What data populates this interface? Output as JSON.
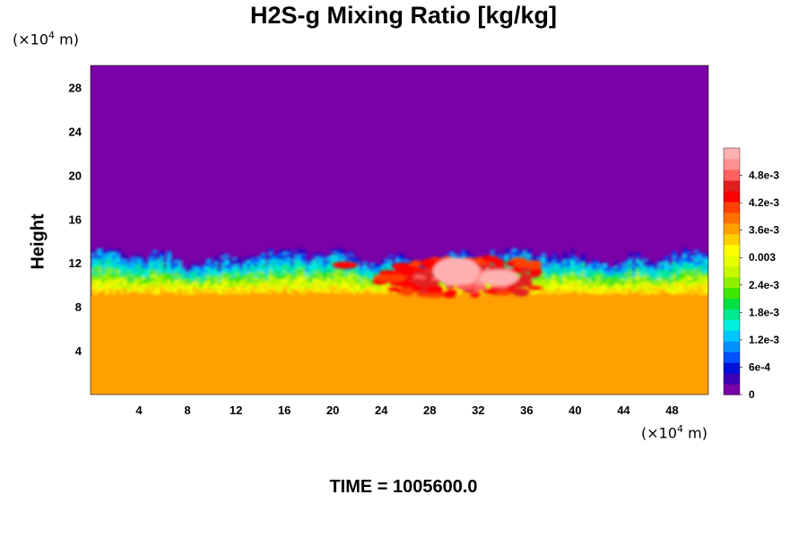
{
  "chart_data": {
    "type": "heatmap",
    "title": "H2S-g Mixing Ratio [kg/kg]",
    "ylabel": "Height",
    "xlabel": "",
    "x_unit_base": "(×10",
    "x_unit_exp": "4",
    "x_unit_tail": " m)",
    "y_unit_base": "(×10",
    "y_unit_exp": "4",
    "y_unit_tail": " m)",
    "xlim": [
      0,
      51
    ],
    "ylim": [
      0,
      30
    ],
    "x_ticks": [
      "4",
      "8",
      "12",
      "16",
      "20",
      "24",
      "28",
      "32",
      "36",
      "40",
      "44",
      "48"
    ],
    "x_tick_values": [
      4,
      8,
      12,
      16,
      20,
      24,
      28,
      32,
      36,
      40,
      44,
      48
    ],
    "y_ticks": [
      "4",
      "8",
      "12",
      "16",
      "20",
      "24",
      "28"
    ],
    "y_tick_values": [
      4,
      8,
      12,
      16,
      20,
      24,
      28
    ],
    "colorbar": {
      "labels": [
        "0",
        "6e-4",
        "1.2e-3",
        "1.8e-3",
        "2.4e-3",
        "0.003",
        "3.6e-3",
        "4.2e-3",
        "4.8e-3"
      ],
      "label_values": [
        0,
        0.0006,
        0.0012,
        0.0018,
        0.0024,
        0.003,
        0.0036,
        0.0042,
        0.0048
      ],
      "vmin": 0,
      "vmax": 0.0054,
      "colors": [
        "#7a00a8",
        "#3d00b8",
        "#0010d8",
        "#0050ff",
        "#0090ff",
        "#00c8ff",
        "#00f0e0",
        "#00e890",
        "#00e040",
        "#40e800",
        "#90f000",
        "#c8f800",
        "#e8ff00",
        "#ffff00",
        "#ffd000",
        "#ffa000",
        "#ff7000",
        "#ff4000",
        "#ff0000",
        "#e02020",
        "#ff6060",
        "#ff9090",
        "#ffb0b0"
      ]
    },
    "regions": [
      {
        "name": "background",
        "y_range": [
          13,
          30
        ],
        "value": 0
      },
      {
        "name": "base-layer",
        "y_range": [
          0,
          9
        ],
        "value": 0.0037
      },
      {
        "name": "transition-band",
        "y_range": [
          9,
          13
        ],
        "value_range": [
          0.0003,
          0.0036
        ]
      },
      {
        "name": "peak-plume",
        "x_range": [
          22,
          37
        ],
        "y_range": [
          9,
          12.5
        ],
        "value_range": [
          0.0042,
          0.0054
        ]
      }
    ],
    "grid": false
  },
  "footer": {
    "time_label": "TIME = 1005600.0"
  }
}
